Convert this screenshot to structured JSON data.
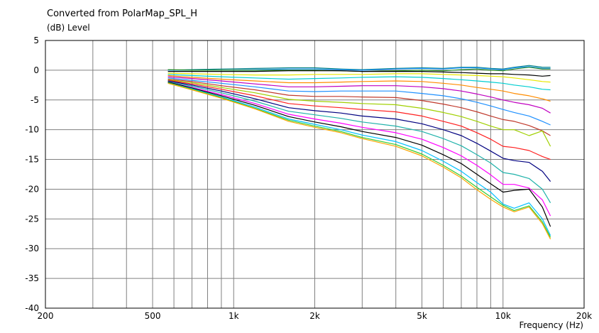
{
  "chart_data": {
    "type": "line",
    "title": "Converted from PolarMap_SPL_H",
    "ylabel": "(dB)  Level",
    "xlabel": "Frequency  (Hz)",
    "xscale": "log",
    "xlim": [
      200,
      20000
    ],
    "ylim": [
      -40,
      5
    ],
    "grid": true,
    "legend": "none",
    "xticks": [
      {
        "value": 200,
        "label": "200"
      },
      {
        "value": 500,
        "label": "500"
      },
      {
        "value": 1000,
        "label": "1k"
      },
      {
        "value": 2000,
        "label": "2k"
      },
      {
        "value": 5000,
        "label": "5k"
      },
      {
        "value": 10000,
        "label": "10k"
      },
      {
        "value": 20000,
        "label": "20k"
      }
    ],
    "yticks": [
      5,
      0,
      -5,
      -10,
      -15,
      -20,
      -25,
      -30,
      -35,
      -40
    ],
    "x": [
      570,
      700,
      900,
      1200,
      1600,
      2000,
      2500,
      3000,
      4000,
      5000,
      6000,
      7000,
      8000,
      9000,
      10000,
      11000,
      12500,
      14000,
      15000
    ],
    "series": [
      {
        "color": "#008080",
        "values": [
          0,
          0.1,
          0.2,
          0.3,
          0.4,
          0.4,
          0.2,
          0.1,
          0.3,
          0.4,
          0.3,
          0.5,
          0.5,
          0.3,
          0.2,
          0.5,
          0.8,
          0.5,
          0.5
        ]
      },
      {
        "color": "#1e90ff",
        "values": [
          0,
          0,
          0,
          0.1,
          0.2,
          0.2,
          0.1,
          0,
          0.2,
          0.3,
          0.2,
          0.4,
          0.4,
          0.2,
          0.1,
          0.4,
          0.6,
          0.3,
          0.3
        ]
      },
      {
        "color": "#228b22",
        "values": [
          0.1,
          0,
          0,
          0,
          0,
          0,
          -0.1,
          -0.2,
          -0.1,
          0,
          -0.1,
          0.1,
          0.2,
          0,
          -0.1,
          0.2,
          0.5,
          0.2,
          0.2
        ]
      },
      {
        "color": "#000000",
        "values": [
          -0.2,
          -0.2,
          -0.2,
          -0.2,
          -0.1,
          -0.1,
          -0.1,
          -0.2,
          -0.2,
          -0.2,
          -0.3,
          -0.4,
          -0.5,
          -0.6,
          -0.6,
          -0.7,
          -0.8,
          -1.0,
          -0.9
        ]
      },
      {
        "color": "#e8e800",
        "values": [
          -0.5,
          -0.6,
          -0.7,
          -0.8,
          -0.8,
          -0.7,
          -0.7,
          -0.7,
          -0.6,
          -0.6,
          -0.7,
          -0.8,
          -0.9,
          -1.0,
          -1.1,
          -1.3,
          -1.6,
          -1.9,
          -2.0
        ]
      },
      {
        "color": "#00ced1",
        "values": [
          -0.7,
          -0.9,
          -1.1,
          -1.3,
          -1.5,
          -1.4,
          -1.3,
          -1.2,
          -1.1,
          -1.2,
          -1.4,
          -1.6,
          -1.8,
          -2.0,
          -2.2,
          -2.5,
          -2.8,
          -3.2,
          -3.3
        ]
      },
      {
        "color": "#ff8c00",
        "values": [
          -0.9,
          -1.2,
          -1.5,
          -1.8,
          -2.1,
          -2.1,
          -2.0,
          -1.9,
          -1.8,
          -1.9,
          -2.2,
          -2.5,
          -2.9,
          -3.2,
          -3.5,
          -3.9,
          -4.3,
          -4.8,
          -5.2
        ]
      },
      {
        "color": "#c000c0",
        "values": [
          -1.1,
          -1.4,
          -1.8,
          -2.3,
          -2.8,
          -2.8,
          -2.7,
          -2.6,
          -2.6,
          -2.8,
          -3.1,
          -3.5,
          -4.0,
          -4.5,
          -5.0,
          -5.4,
          -5.8,
          -6.4,
          -7.2
        ]
      },
      {
        "color": "#1e90ff",
        "values": [
          -1.3,
          -1.7,
          -2.2,
          -2.8,
          -3.5,
          -3.6,
          -3.5,
          -3.5,
          -3.5,
          -3.9,
          -4.3,
          -4.8,
          -5.4,
          -6.0,
          -6.6,
          -7.1,
          -7.7,
          -8.6,
          -9.2
        ]
      },
      {
        "color": "#c0392b",
        "values": [
          -1.5,
          -1.9,
          -2.6,
          -3.3,
          -4.2,
          -4.4,
          -4.4,
          -4.5,
          -4.6,
          -5.1,
          -5.7,
          -6.3,
          -7.0,
          -7.7,
          -8.3,
          -8.6,
          -9.3,
          -10.2,
          -11.0
        ]
      },
      {
        "color": "#a0d000",
        "values": [
          -1.6,
          -2.1,
          -2.9,
          -3.8,
          -4.9,
          -5.2,
          -5.4,
          -5.6,
          -5.8,
          -6.4,
          -7.1,
          -7.8,
          -8.6,
          -9.4,
          -10.0,
          -10.0,
          -11.0,
          -10.2,
          -12.8
        ]
      },
      {
        "color": "#ff2020",
        "values": [
          -1.7,
          -2.3,
          -3.2,
          -4.3,
          -5.6,
          -6.0,
          -6.3,
          -6.6,
          -7.0,
          -7.7,
          -8.6,
          -9.4,
          -10.5,
          -11.6,
          -12.8,
          -13.0,
          -13.5,
          -14.5,
          -15.0
        ]
      },
      {
        "color": "#000080",
        "values": [
          -1.8,
          -2.5,
          -3.5,
          -4.8,
          -6.3,
          -6.8,
          -7.2,
          -7.7,
          -8.2,
          -9.0,
          -10.0,
          -11.0,
          -12.3,
          -13.6,
          -14.8,
          -15.2,
          -15.5,
          -17.0,
          -18.7
        ]
      },
      {
        "color": "#20b2aa",
        "values": [
          -1.9,
          -2.7,
          -3.8,
          -5.2,
          -6.9,
          -7.5,
          -8.1,
          -8.7,
          -9.4,
          -10.3,
          -11.5,
          -12.7,
          -14.2,
          -15.6,
          -17.2,
          -17.5,
          -18.2,
          -20.0,
          -22.3
        ]
      },
      {
        "color": "#ff00ff",
        "values": [
          -2.0,
          -2.9,
          -4.1,
          -5.6,
          -7.4,
          -8.2,
          -8.9,
          -9.6,
          -10.5,
          -11.6,
          -13.0,
          -14.4,
          -16.0,
          -17.6,
          -19.2,
          -19.2,
          -19.8,
          -21.8,
          -24.5
        ]
      },
      {
        "color": "#000000",
        "values": [
          -2.0,
          -3.0,
          -4.3,
          -5.9,
          -7.8,
          -8.7,
          -9.5,
          -10.3,
          -11.3,
          -12.6,
          -14.2,
          -15.7,
          -17.5,
          -19.1,
          -20.5,
          -20.2,
          -20.0,
          -23.0,
          -26.3
        ]
      },
      {
        "color": "#00bfff",
        "values": [
          -2.1,
          -3.1,
          -4.5,
          -6.2,
          -8.2,
          -9.1,
          -10.0,
          -10.9,
          -12.0,
          -13.5,
          -15.3,
          -17.0,
          -18.9,
          -20.5,
          -22.5,
          -23.2,
          -22.3,
          -25.0,
          -27.8
        ]
      },
      {
        "color": "#32cd32",
        "values": [
          -2.1,
          -3.2,
          -4.6,
          -6.4,
          -8.4,
          -9.4,
          -10.3,
          -11.3,
          -12.5,
          -14.1,
          -16.0,
          -17.8,
          -19.7,
          -21.3,
          -22.7,
          -23.6,
          -22.8,
          -25.5,
          -28.1
        ]
      },
      {
        "color": "#ffa500",
        "values": [
          -2.2,
          -3.3,
          -4.7,
          -6.5,
          -8.6,
          -9.6,
          -10.5,
          -11.5,
          -12.8,
          -14.4,
          -16.3,
          -18.1,
          -20.1,
          -21.7,
          -23.0,
          -23.8,
          -23.0,
          -25.8,
          -28.4
        ]
      }
    ]
  }
}
